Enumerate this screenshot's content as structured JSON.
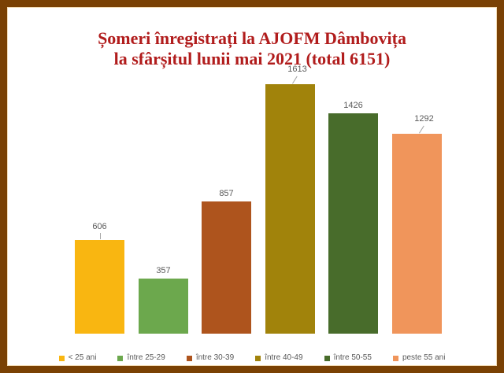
{
  "frame": {
    "border_color": "#7A4104",
    "inner_line_color": "#F3DCB7",
    "background": "#FFFFFF"
  },
  "chart_data": {
    "type": "bar",
    "title": "Șomeri înregistrați la AJOFM Dâmbovița la sfârșitul lunii mai 2021 (total 6151)",
    "title_lines": [
      "Șomeri înregistrați la AJOFM Dâmbovița",
      "la sfârșitul lunii mai 2021 (total 6151)"
    ],
    "title_color": "#B11C1C",
    "total": 6151,
    "categories": [
      "< 25 ani",
      "între 25-29",
      "între 30-39",
      "între 40-49",
      "între 50-55",
      "peste 55 ani"
    ],
    "values": [
      606,
      357,
      857,
      1613,
      1426,
      1292
    ],
    "colors": [
      "#F9B611",
      "#6CA84D",
      "#AE541D",
      "#A1830B",
      "#486C2B",
      "#F0955B"
    ],
    "value_label_color": "#595959",
    "legend_text_color": "#595959",
    "leader_line_color": "#A6A6A6",
    "label_leaders": [
      "vertical",
      "none",
      "none",
      "slant",
      "none",
      "slant"
    ],
    "xlabel": "",
    "ylabel": "",
    "ylim": [
      0,
      1700
    ],
    "grid": false,
    "value_labels": true,
    "legend_position": "bottom"
  }
}
